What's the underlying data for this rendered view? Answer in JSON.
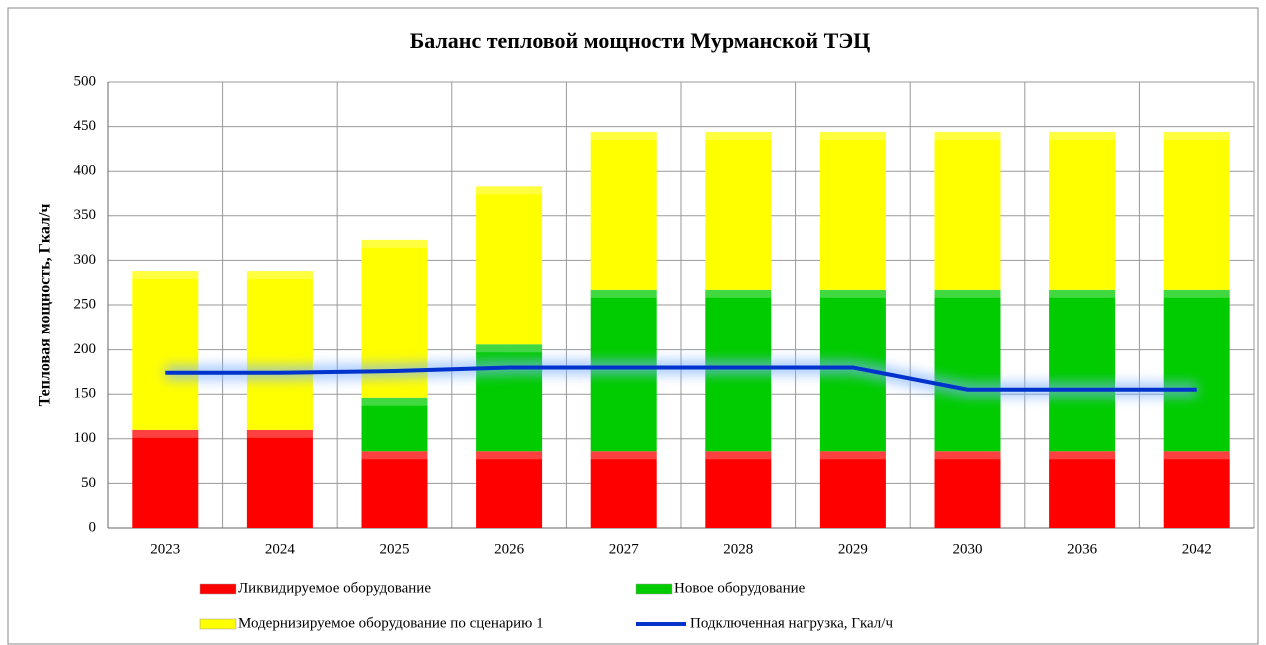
{
  "chart_data": {
    "type": "bar",
    "stacked": true,
    "title": "Баланс тепловой мощности Мурманской ТЭЦ",
    "y_label": "Тепловая мощность, Гкал/ч",
    "categories": [
      "2023",
      "2024",
      "2025",
      "2026",
      "2027",
      "2028",
      "2029",
      "2030",
      "2036",
      "2042"
    ],
    "series": [
      {
        "name": "Ликвидируемое оборудование",
        "color": "#ff0000",
        "values": [
          110,
          110,
          86,
          86,
          86,
          86,
          86,
          86,
          86,
          86
        ]
      },
      {
        "name": "Новое оборудование",
        "color": "#00cc00",
        "values": [
          0,
          0,
          60,
          120,
          181,
          181,
          181,
          181,
          181,
          181
        ]
      },
      {
        "name": "Модернизируемое оборудование по сценарию 1",
        "color": "#ffff00",
        "values": [
          178,
          178,
          177,
          177,
          177,
          177,
          177,
          177,
          177,
          177
        ]
      },
      {
        "name": "Подключенная нагрузка, Гкал/ч",
        "color": "#0033cc",
        "type": "line",
        "values": [
          174,
          174,
          176,
          180,
          180,
          180,
          180,
          155,
          155,
          155
        ]
      }
    ],
    "ylim": [
      0,
      500
    ],
    "yticks": [
      0,
      50,
      100,
      150,
      200,
      250,
      300,
      350,
      400,
      450,
      500
    ],
    "grid": true
  }
}
